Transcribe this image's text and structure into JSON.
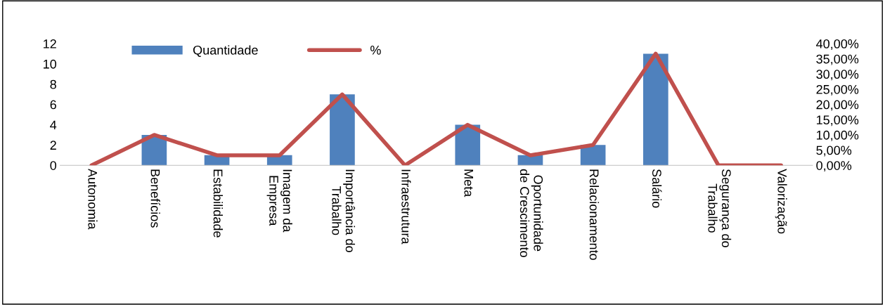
{
  "chart_data": {
    "type": "bar",
    "categories": [
      "Autonomia",
      "Benefícios",
      "Estabilidade",
      "Imagem da\nEmpresa",
      "Importância do\nTrabalho",
      "Infraestrutura",
      "Meta",
      "Oportunidade\nde Crescimento",
      "Relacionamento",
      "Salário",
      "Segurança do\nTrabalho",
      "Valorização"
    ],
    "series": [
      {
        "name": "Quantidade",
        "color": "#4f81bd",
        "values": [
          0,
          3,
          1,
          1,
          7,
          0,
          4,
          1,
          2,
          11,
          0,
          0
        ]
      },
      {
        "name": "%",
        "type": "line",
        "axis": "y2",
        "color": "#c0504d",
        "values": [
          0,
          10,
          3.3,
          3.3,
          23.3,
          0,
          13.3,
          3.3,
          6.7,
          36.7,
          0,
          0
        ]
      }
    ],
    "ylim": [
      0,
      12
    ],
    "yticks": [
      0,
      2,
      4,
      6,
      8,
      10,
      12
    ],
    "y2lim": [
      0,
      40
    ],
    "y2ticks": [
      {
        "value": 0,
        "label": "0,00%"
      },
      {
        "value": 5,
        "label": "5,00%"
      },
      {
        "value": 10,
        "label": "10,00%"
      },
      {
        "value": 15,
        "label": "15,00%"
      },
      {
        "value": 20,
        "label": "20,00%"
      },
      {
        "value": 25,
        "label": "25,00%"
      },
      {
        "value": 30,
        "label": "30,00%"
      },
      {
        "value": 35,
        "label": "35,00%"
      },
      {
        "value": 40,
        "label": "40,00%"
      }
    ],
    "legend": "top left",
    "grid": false
  }
}
